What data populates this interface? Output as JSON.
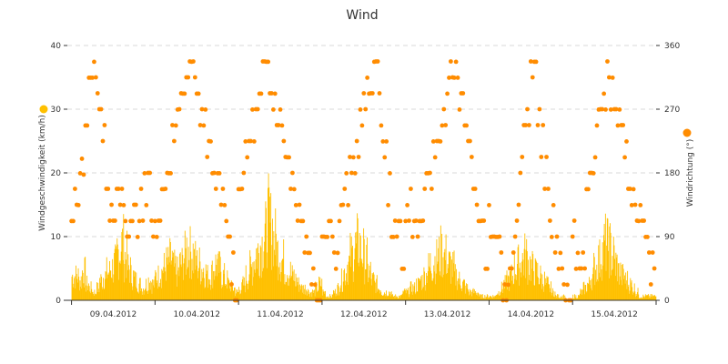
{
  "chart_data": {
    "type": "bar+scatter",
    "title": "Wind",
    "left_axis": {
      "label": "Windgeschwindigkeit (km/h)",
      "ylim": [
        0,
        40
      ],
      "ticks": [
        "0",
        "10",
        "20",
        "30",
        "40"
      ]
    },
    "right_axis": {
      "label": "Windrichtung (°)",
      "ylim": [
        0,
        360
      ],
      "ticks": [
        "0",
        "90",
        "180",
        "270",
        "360"
      ]
    },
    "x_ticks": [
      "09.04.2012",
      "10.04.2012",
      "11.04.2012",
      "12.04.2012",
      "13.04.2012",
      "14.04.2012",
      "15.04.2012"
    ],
    "x_range_days": [
      8.95,
      16.0
    ],
    "grid": true,
    "series": [
      {
        "name": "Windgeschwindigkeit",
        "type": "bar",
        "color": "#ffc000",
        "hourly_max": [
          6,
          6,
          5,
          7,
          4,
          3,
          2,
          3,
          5,
          6,
          7,
          8,
          9,
          12,
          14,
          11,
          8,
          6,
          5,
          4,
          3,
          4,
          5,
          4,
          6,
          7,
          8,
          9,
          10,
          8,
          7,
          9,
          11,
          13,
          12,
          10,
          9,
          8,
          7,
          6,
          7,
          9,
          8,
          6,
          5,
          4,
          3,
          2,
          3,
          4,
          6,
          8,
          10,
          12,
          14,
          16,
          20,
          18,
          15,
          12,
          10,
          8,
          7,
          6,
          5,
          4,
          3,
          3,
          2,
          2,
          3,
          4,
          2,
          1,
          1,
          2,
          3,
          5,
          7,
          9,
          11,
          13,
          14,
          12,
          10,
          7,
          5,
          4,
          3,
          2,
          2,
          2,
          1,
          1,
          1,
          2,
          2,
          3,
          3,
          4,
          5,
          6,
          8,
          9,
          10,
          11,
          12,
          11,
          9,
          8,
          6,
          5,
          4,
          3,
          2,
          2,
          2,
          1,
          1,
          1,
          1,
          1,
          2,
          3,
          4,
          5,
          6,
          8,
          9,
          10,
          11,
          9,
          8,
          7,
          6,
          5,
          4,
          3,
          2,
          1,
          1,
          1,
          0,
          0,
          1,
          1,
          2,
          3,
          4,
          6,
          8,
          10,
          12,
          14,
          13,
          11,
          9,
          7,
          6,
          5,
          4,
          3,
          2,
          1,
          1,
          1,
          1,
          1
        ]
      },
      {
        "name": "Windrichtung",
        "type": "scatter",
        "color": "#ff8c00",
        "hourly_deg": [
          112,
          135,
          157,
          200,
          247,
          292,
          337,
          315,
          270,
          225,
          180,
          135,
          135,
          135,
          135,
          112,
          90,
          112,
          135,
          112,
          135,
          157,
          180,
          90,
          112,
          135,
          157,
          180,
          202,
          225,
          247,
          270,
          292,
          315,
          337,
          315,
          292,
          270,
          247,
          225,
          202,
          180,
          157,
          135,
          112,
          90,
          45,
          0,
          157,
          180,
          202,
          225,
          247,
          270,
          292,
          315,
          337,
          315,
          292,
          270,
          247,
          225,
          202,
          180,
          157,
          135,
          112,
          90,
          67,
          45,
          22,
          0,
          90,
          112,
          112,
          90,
          67,
          112,
          135,
          157,
          180,
          202,
          225,
          247,
          270,
          292,
          315,
          337,
          315,
          247,
          202,
          157,
          112,
          90,
          112,
          67,
          112,
          135,
          112,
          90,
          112,
          135,
          157,
          180,
          202,
          225,
          247,
          270,
          292,
          315,
          337,
          292,
          270,
          247,
          225,
          180,
          135,
          112,
          90,
          67,
          112,
          90,
          112,
          90,
          0,
          22,
          45,
          90,
          135,
          180,
          225,
          270,
          315,
          337,
          270,
          225,
          180,
          135,
          112,
          90,
          67,
          45,
          22,
          0,
          90,
          67,
          45,
          45,
          157,
          180,
          202,
          247,
          270,
          292,
          315,
          292,
          270,
          247,
          225,
          202,
          180,
          157,
          135,
          112,
          90,
          67,
          45,
          45
        ]
      }
    ]
  }
}
